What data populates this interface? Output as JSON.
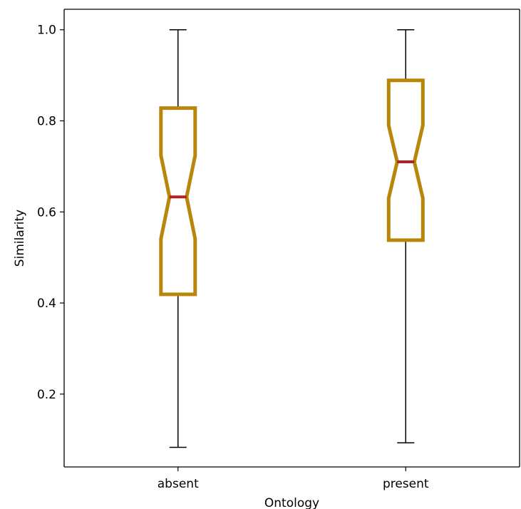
{
  "chart_data": {
    "type": "boxplot",
    "xlabel": "Ontology",
    "ylabel": "Similarity",
    "categories": [
      "absent",
      "present"
    ],
    "ylim": [
      0.04,
      1.045
    ],
    "yticks": [
      0.2,
      0.4,
      0.6,
      0.8,
      1.0
    ],
    "ytick_labels": [
      "0.2",
      "0.4",
      "0.6",
      "0.8",
      "1.0"
    ],
    "notched": true,
    "grid": false,
    "boxes": [
      {
        "category": "absent",
        "whisker_low": 0.083,
        "q1": 0.419,
        "median": 0.633,
        "q3": 0.828,
        "whisker_high": 1.0,
        "notch_low": 0.541,
        "notch_high": 0.724
      },
      {
        "category": "present",
        "whisker_low": 0.093,
        "q1": 0.538,
        "median": 0.71,
        "q3": 0.889,
        "whisker_high": 1.0,
        "notch_low": 0.63,
        "notch_high": 0.79
      }
    ],
    "colors": {
      "box": "#b8860b",
      "median": "#b22222",
      "whisker": "#000000"
    }
  }
}
